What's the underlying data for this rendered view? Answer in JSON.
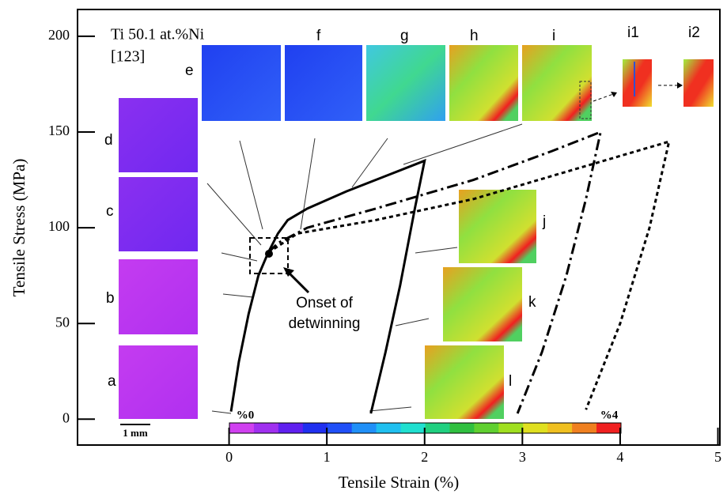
{
  "chart_data": {
    "type": "line",
    "x_label": "Tensile Strain (%)",
    "y_label": "Tensile Stress (MPa)",
    "annotations": [
      "Ti 50.1 at.%Ni",
      "[123]",
      "Onset of",
      "detwinning",
      "%0",
      "%4",
      "1 mm"
    ],
    "panel_labels": [
      "a",
      "b",
      "c",
      "d",
      "e",
      "f",
      "g",
      "h",
      "i",
      "i1",
      "i2",
      "j",
      "k",
      "l"
    ],
    "xlim": [
      -1.55,
      5.02
    ],
    "ylim": [
      -13.5,
      214
    ],
    "xticks": [
      0,
      1,
      2,
      3,
      4,
      5
    ],
    "yticks": [
      0,
      50,
      100,
      150,
      200
    ],
    "series": [
      {
        "color": "#000000",
        "line_style": "solid",
        "x": [
          0.02,
          0.1,
          0.2,
          0.3,
          0.4,
          0.5,
          0.6,
          0.8,
          1.2,
          1.6,
          2.0,
          1.9,
          1.75,
          1.6,
          1.45
        ],
        "values": [
          4,
          30,
          55,
          75,
          87,
          97,
          104,
          110,
          119,
          127,
          135,
          110,
          70,
          35,
          3
        ]
      },
      {
        "color": "#000000",
        "line_style": "dashdot",
        "x": [
          0.4,
          0.5,
          0.8,
          1.5,
          2.5,
          3.3,
          3.8,
          3.65,
          3.45,
          3.2,
          2.95
        ],
        "values": [
          87,
          92,
          100,
          110,
          125,
          140,
          150,
          115,
          75,
          35,
          3
        ]
      },
      {
        "color": "#000000",
        "line_style": "dotted",
        "x": [
          0.4,
          0.7,
          1.5,
          2.5,
          3.5,
          4.5,
          4.3,
          4.0,
          3.65
        ],
        "values": [
          87,
          97,
          104,
          115,
          130,
          145,
          100,
          50,
          5
        ]
      }
    ]
  }
}
